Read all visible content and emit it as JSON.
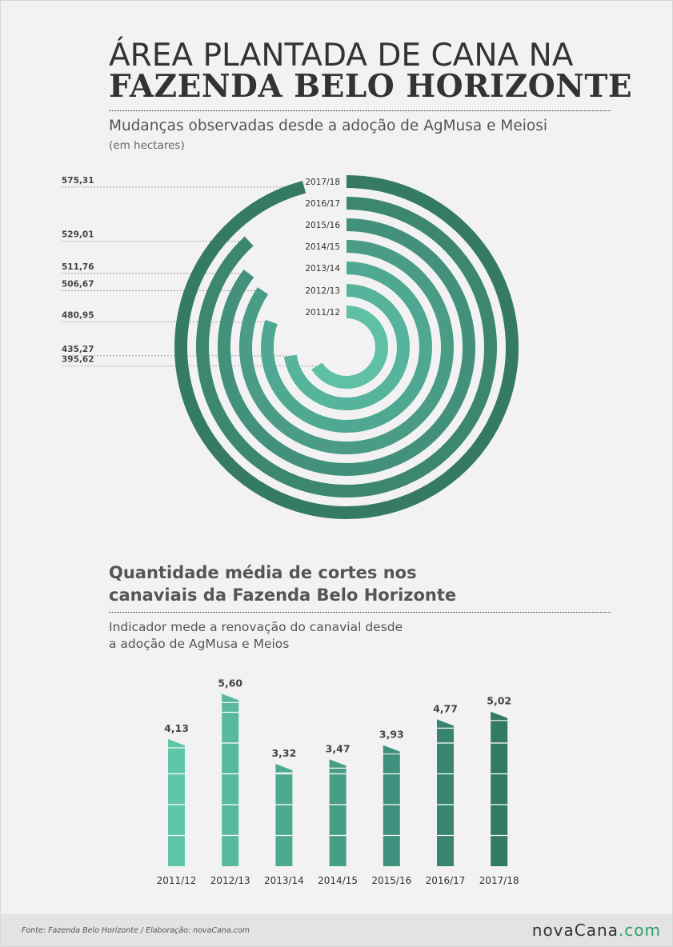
{
  "header": {
    "title_line1": "ÁREA PLANTADA DE CANA NA",
    "title_line2": "FAZENDA BELO HORIZONTE"
  },
  "section1": {
    "subtitle": "Mudanças observadas desde a adoção de AgMusa e Meiosi",
    "unit": "(em hectares)"
  },
  "section2": {
    "title_line1": "Quantidade média de cortes nos",
    "title_line2": "canaviais da Fazenda Belo Horizonte",
    "desc_line1": "Indicador mede a renovação do canavial desde",
    "desc_line2": "a adoção de AgMusa e Meios"
  },
  "footer": {
    "source": "Fonte:  Fazenda  Belo  Horizonte   /  Elaboração:   novaCana.com",
    "brand_main": "novaCana",
    "brand_suffix": ".com"
  },
  "colors": {
    "ring_gradient": [
      "#5fc0a6",
      "#56b39c",
      "#4fa891",
      "#4a9c86",
      "#43917c",
      "#3d8670",
      "#357a63"
    ],
    "bar_gradient": [
      "#5fc6a9",
      "#58b99c",
      "#4daa91",
      "#479e87",
      "#3f907c",
      "#398470",
      "#337a64"
    ]
  },
  "chart_data": [
    {
      "type": "radial-bar",
      "subtitle": "Mudanças observadas desde a adoção de AgMusa e Meiosi",
      "unit": "(em hectares)",
      "categories": [
        "2011/12",
        "2012/13",
        "2013/14",
        "2014/15",
        "2015/16",
        "2016/17",
        "2017/18"
      ],
      "values": [
        395.62,
        435.27,
        480.95,
        506.67,
        511.76,
        529.01,
        575.31
      ],
      "value_labels": [
        "395,62",
        "435,27",
        "480,95",
        "506,67",
        "511,76",
        "529,01",
        "575,31"
      ]
    },
    {
      "type": "bar",
      "title": "Quantidade média de cortes nos canaviais da Fazenda Belo Horizonte",
      "categories": [
        "2011/12",
        "2012/13",
        "2013/14",
        "2014/15",
        "2015/16",
        "2016/17",
        "2017/18"
      ],
      "values": [
        4.13,
        5.6,
        3.32,
        3.47,
        3.93,
        4.77,
        5.02
      ],
      "value_labels": [
        "4,13",
        "5,60",
        "3,32",
        "3,47",
        "3,93",
        "4,77",
        "5,02"
      ]
    }
  ]
}
